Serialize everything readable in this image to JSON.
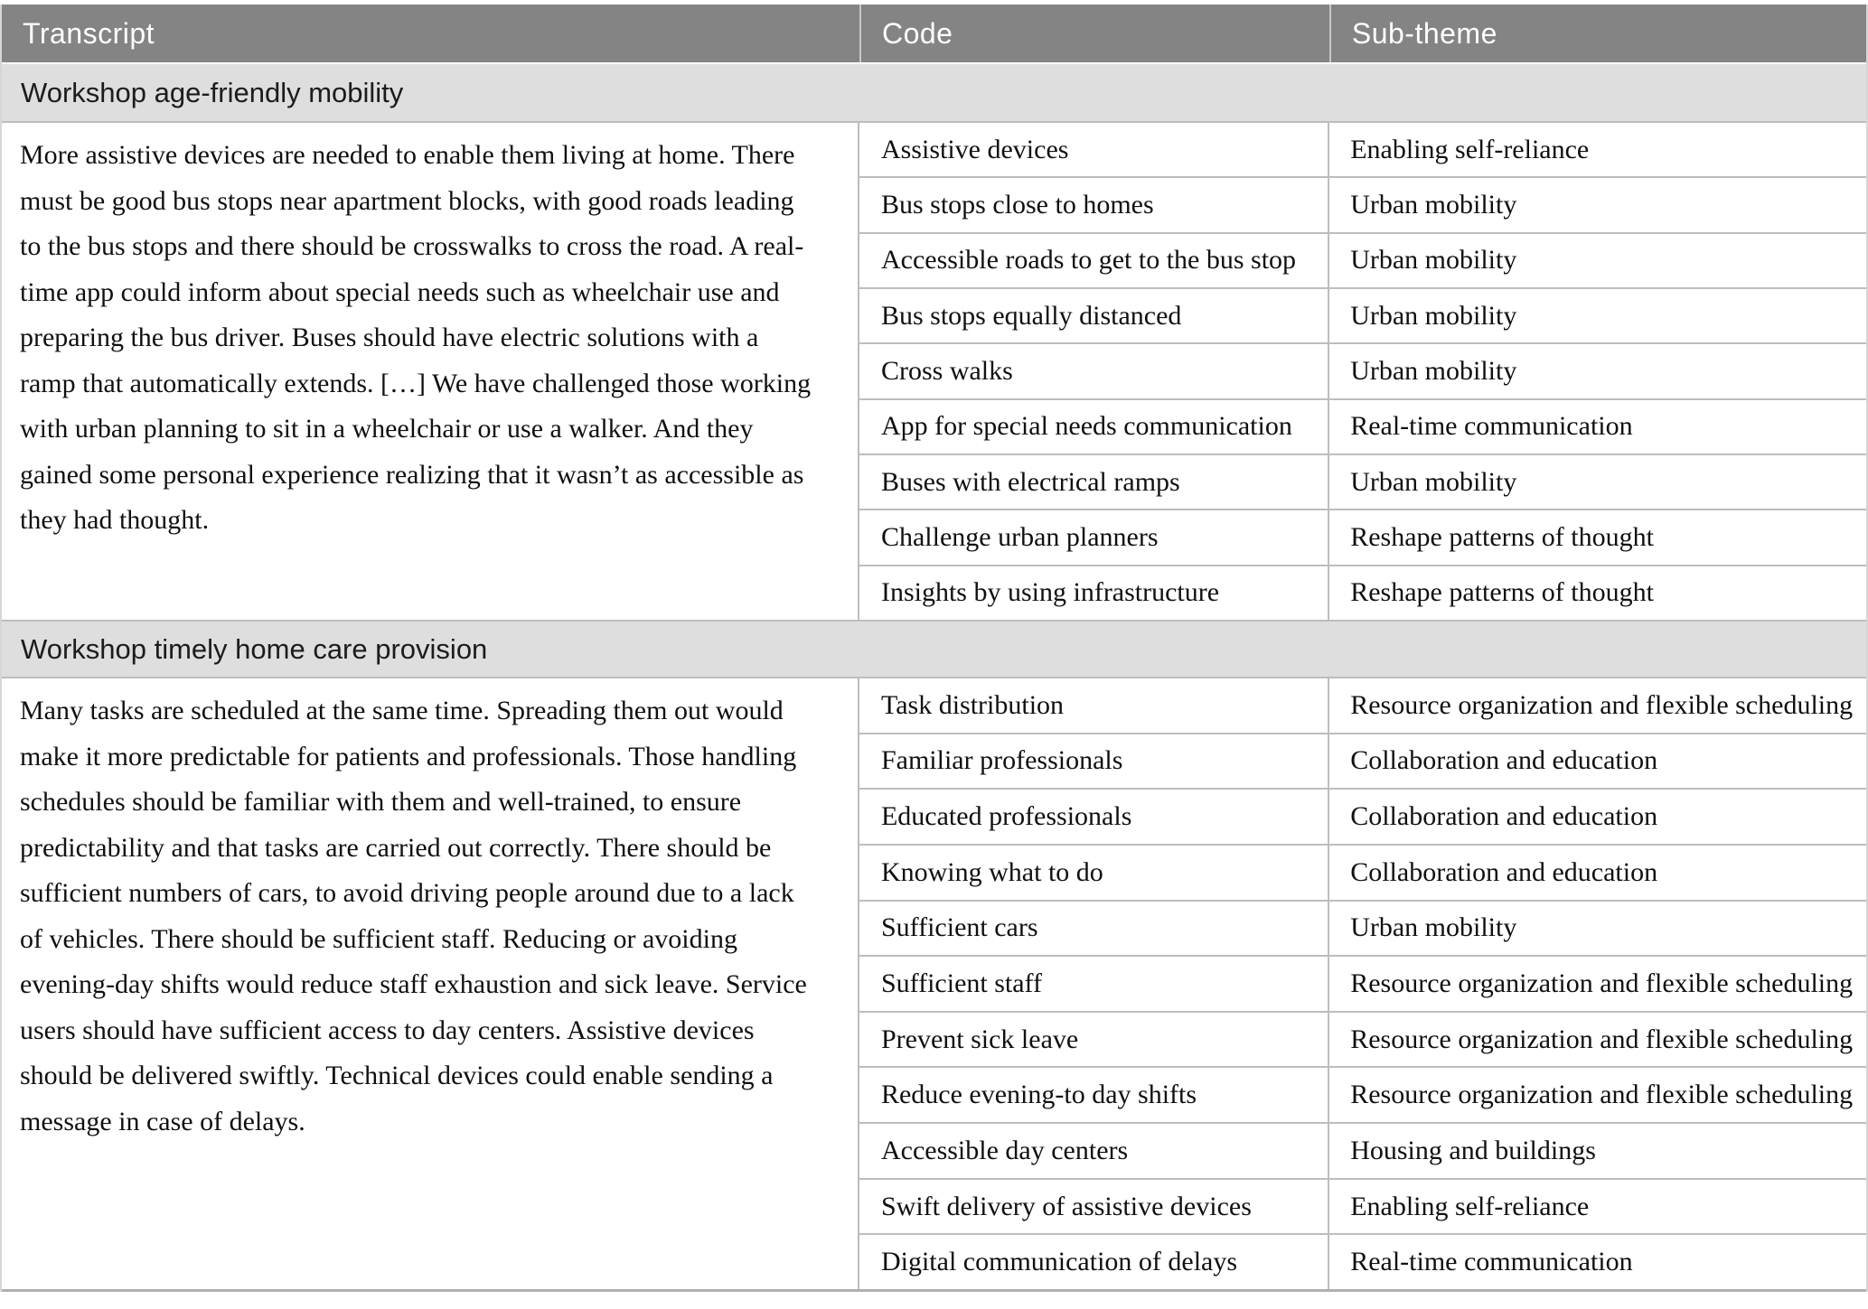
{
  "table": {
    "colors": {
      "header_bg": "#848484",
      "header_text": "#ffffff",
      "band_bg": "#dedede",
      "band_text": "#1c1c1c",
      "body_text": "#101010",
      "row_border": "#bdbdbd"
    },
    "columns": [
      {
        "label": "Transcript"
      },
      {
        "label": "Code"
      },
      {
        "label": "Sub-theme"
      }
    ],
    "sections": [
      {
        "title": "Workshop age-friendly mobility",
        "transcript": "More assistive devices are needed to enable them living at home. There must be good bus stops near apartment blocks, with good roads leading to the bus stops and there should be crosswalks to cross the road. A real-time app could inform about special needs such as wheelchair use and preparing the bus driver. Buses should have electric solutions with a ramp that automatically extends. […] We have challenged those working with urban planning to sit in a wheelchair or use a walker. And they gained some personal experience realizing that it wasn’t as accessible as they had thought.",
        "rows": [
          {
            "code": "Assistive devices",
            "sub_theme": "Enabling self-reliance"
          },
          {
            "code": "Bus stops close to homes",
            "sub_theme": "Urban mobility"
          },
          {
            "code": "Accessible roads to get to the bus stop",
            "sub_theme": "Urban mobility"
          },
          {
            "code": "Bus stops equally distanced",
            "sub_theme": "Urban mobility"
          },
          {
            "code": "Cross walks",
            "sub_theme": "Urban mobility"
          },
          {
            "code": "App for special needs communication",
            "sub_theme": "Real-time communication"
          },
          {
            "code": "Buses with electrical ramps",
            "sub_theme": "Urban mobility"
          },
          {
            "code": "Challenge urban planners",
            "sub_theme": "Reshape patterns of thought"
          },
          {
            "code": "Insights by using infrastructure",
            "sub_theme": "Reshape patterns of thought"
          }
        ]
      },
      {
        "title": "Workshop timely home care provision",
        "transcript": "Many tasks are scheduled at the same time. Spreading them out would make it more predictable for patients and professionals. Those handling schedules should be familiar with them and well-trained, to ensure predictability and that tasks are carried out correctly. There should be sufficient numbers of cars, to avoid driving people around due to a lack of vehicles. There should be sufficient staff. Reducing or avoiding evening-day shifts would reduce staff exhaustion and sick leave. Service users should have sufficient access to day centers. Assistive devices should be delivered swiftly. Technical devices could enable sending a message in case of delays.",
        "rows": [
          {
            "code": "Task distribution",
            "sub_theme": "Resource organization and flexible scheduling"
          },
          {
            "code": "Familiar professionals",
            "sub_theme": "Collaboration and education"
          },
          {
            "code": "Educated professionals",
            "sub_theme": "Collaboration and education"
          },
          {
            "code": "Knowing what to do",
            "sub_theme": "Collaboration and education"
          },
          {
            "code": "Sufficient cars",
            "sub_theme": "Urban mobility"
          },
          {
            "code": "Sufficient staff",
            "sub_theme": "Resource organization and flexible scheduling"
          },
          {
            "code": "Prevent sick leave",
            "sub_theme": "Resource organization and flexible scheduling"
          },
          {
            "code": "Reduce evening-to day shifts",
            "sub_theme": "Resource organization and flexible scheduling"
          },
          {
            "code": "Accessible day centers",
            "sub_theme": "Housing and buildings"
          },
          {
            "code": "Swift delivery of assistive devices",
            "sub_theme": "Enabling self-reliance"
          },
          {
            "code": "Digital communication of delays",
            "sub_theme": "Real-time communication"
          }
        ]
      }
    ]
  }
}
